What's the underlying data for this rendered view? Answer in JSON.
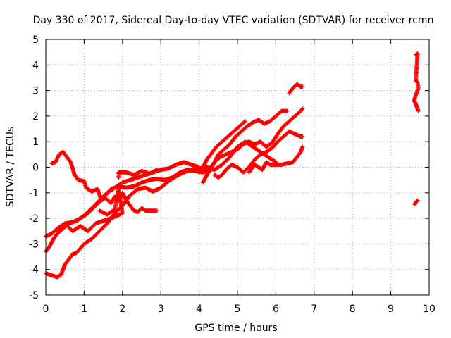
{
  "chart_data": {
    "type": "scatter",
    "title": "Day 330 of 2017, Sidereal Day-to-day VTEC variation (SDTVAR) for receiver rcmn",
    "xlabel": "GPS time / hours",
    "ylabel": "SDTVAR / TECUs",
    "xlim": [
      0,
      10
    ],
    "ylim": [
      -5,
      5
    ],
    "xticks": [
      "0",
      "1",
      "2",
      "3",
      "4",
      "5",
      "6",
      "7",
      "8",
      "9",
      "10"
    ],
    "yticks": [
      "-5",
      "-4",
      "-3",
      "-2",
      "-1",
      "0",
      "1",
      "2",
      "3",
      "4",
      "5"
    ],
    "grid": true,
    "marker": "+",
    "color": "#ff0000",
    "series": [
      {
        "points": [
          [
            0.0,
            -3.3
          ],
          [
            0.1,
            -3.1
          ],
          [
            0.2,
            -2.8
          ],
          [
            0.3,
            -2.6
          ],
          [
            0.45,
            -2.4
          ],
          [
            0.6,
            -2.2
          ],
          [
            0.8,
            -2.1
          ],
          [
            1.0,
            -1.9
          ],
          [
            1.2,
            -1.6
          ],
          [
            1.4,
            -1.3
          ],
          [
            1.6,
            -1.0
          ],
          [
            1.8,
            -0.8
          ],
          [
            2.0,
            -0.6
          ],
          [
            2.2,
            -0.5
          ],
          [
            2.4,
            -0.4
          ],
          [
            2.6,
            -0.3
          ],
          [
            2.8,
            -0.2
          ],
          [
            3.0,
            -0.1
          ],
          [
            3.2,
            -0.05
          ],
          [
            3.4,
            0.1
          ],
          [
            3.6,
            0.2
          ],
          [
            3.8,
            0.1
          ],
          [
            4.0,
            0.0
          ]
        ]
      },
      {
        "points": [
          [
            0.0,
            -2.7
          ],
          [
            0.15,
            -2.6
          ],
          [
            0.3,
            -2.4
          ],
          [
            0.5,
            -2.2
          ],
          [
            0.7,
            -2.15
          ],
          [
            0.9,
            -2.0
          ],
          [
            1.1,
            -1.8
          ],
          [
            1.3,
            -1.5
          ],
          [
            1.5,
            -1.2
          ],
          [
            1.7,
            -0.85
          ],
          [
            1.9,
            -0.75
          ],
          [
            2.1,
            -0.8
          ],
          [
            2.3,
            -0.75
          ],
          [
            2.5,
            -0.6
          ],
          [
            2.7,
            -0.5
          ],
          [
            2.9,
            -0.45
          ],
          [
            3.1,
            -0.5
          ],
          [
            3.3,
            -0.4
          ],
          [
            3.5,
            -0.2
          ],
          [
            3.7,
            -0.1
          ],
          [
            3.9,
            -0.15
          ],
          [
            4.1,
            -0.2
          ],
          [
            4.3,
            -0.1
          ]
        ]
      },
      {
        "points": [
          [
            0.0,
            -4.15
          ],
          [
            0.3,
            -4.3
          ],
          [
            0.4,
            -4.2
          ],
          [
            0.5,
            -3.8
          ],
          [
            0.6,
            -3.6
          ],
          [
            0.7,
            -3.4
          ],
          [
            0.8,
            -3.35
          ],
          [
            1.0,
            -3.0
          ],
          [
            1.2,
            -2.8
          ],
          [
            1.4,
            -2.5
          ],
          [
            1.6,
            -2.2
          ],
          [
            1.8,
            -1.8
          ],
          [
            2.0,
            -1.5
          ],
          [
            2.2,
            -1.1
          ],
          [
            2.4,
            -0.85
          ],
          [
            2.6,
            -0.8
          ],
          [
            2.8,
            -0.95
          ],
          [
            3.0,
            -0.8
          ],
          [
            3.2,
            -0.55
          ],
          [
            3.4,
            -0.35
          ],
          [
            3.6,
            -0.2
          ],
          [
            3.8,
            -0.1
          ],
          [
            4.0,
            -0.05
          ],
          [
            4.2,
            0.0
          ],
          [
            4.4,
            -0.1
          ],
          [
            4.6,
            0.1
          ],
          [
            4.8,
            0.4
          ],
          [
            5.0,
            0.8
          ],
          [
            5.2,
            1.0
          ],
          [
            5.4,
            0.8
          ],
          [
            5.6,
            0.6
          ],
          [
            5.8,
            0.4
          ],
          [
            6.0,
            0.2
          ]
        ]
      },
      {
        "points": [
          [
            0.15,
            0.15
          ],
          [
            0.25,
            0.2
          ],
          [
            0.35,
            0.5
          ],
          [
            0.45,
            0.6
          ],
          [
            0.55,
            0.4
          ],
          [
            0.65,
            0.2
          ],
          [
            0.75,
            -0.3
          ],
          [
            0.85,
            -0.5
          ],
          [
            1.0,
            -0.55
          ],
          [
            1.05,
            -0.8
          ],
          [
            1.2,
            -0.95
          ],
          [
            1.35,
            -0.85
          ],
          [
            1.45,
            -1.3
          ],
          [
            1.55,
            -1.2
          ],
          [
            1.7,
            -1.4
          ],
          [
            1.8,
            -1.15
          ],
          [
            1.9,
            -1.3
          ],
          [
            2.0,
            -1.0
          ],
          [
            2.1,
            -1.3
          ],
          [
            2.2,
            -1.5
          ],
          [
            2.3,
            -1.7
          ],
          [
            2.4,
            -1.75
          ],
          [
            2.5,
            -1.6
          ],
          [
            2.6,
            -1.7
          ],
          [
            2.75,
            -1.7
          ],
          [
            2.9,
            -1.7
          ]
        ]
      },
      {
        "points": [
          [
            1.4,
            -1.7
          ],
          [
            1.6,
            -1.85
          ],
          [
            1.8,
            -1.65
          ],
          [
            1.9,
            -0.85
          ],
          [
            2.0,
            -1.8
          ],
          [
            1.7,
            -2.0
          ],
          [
            1.5,
            -2.1
          ],
          [
            1.3,
            -2.2
          ],
          [
            1.1,
            -2.5
          ],
          [
            0.9,
            -2.3
          ],
          [
            0.7,
            -2.5
          ],
          [
            0.5,
            -2.2
          ],
          [
            0.3,
            -2.5
          ],
          [
            1.9,
            -0.4
          ],
          [
            1.9,
            -0.2
          ],
          [
            2.1,
            -0.2
          ],
          [
            2.3,
            -0.3
          ],
          [
            2.5,
            -0.15
          ],
          [
            2.7,
            -0.25
          ],
          [
            2.9,
            -0.1
          ]
        ]
      },
      {
        "points": [
          [
            4.1,
            -0.6
          ],
          [
            4.2,
            -0.3
          ],
          [
            4.3,
            -0.1
          ],
          [
            4.4,
            0.2
          ],
          [
            4.55,
            0.4
          ],
          [
            4.7,
            0.5
          ],
          [
            4.85,
            0.6
          ],
          [
            5.0,
            0.7
          ],
          [
            5.15,
            0.9
          ],
          [
            5.3,
            1.0
          ],
          [
            5.45,
            0.9
          ],
          [
            5.6,
            1.0
          ],
          [
            5.75,
            0.8
          ],
          [
            5.9,
            0.95
          ],
          [
            6.05,
            1.3
          ],
          [
            6.2,
            1.6
          ],
          [
            6.35,
            1.8
          ],
          [
            6.5,
            2.0
          ],
          [
            6.65,
            2.2
          ],
          [
            6.7,
            2.3
          ]
        ]
      },
      {
        "points": [
          [
            4.2,
            -0.3
          ],
          [
            4.3,
            0.0
          ],
          [
            4.4,
            0.2
          ],
          [
            4.5,
            0.5
          ],
          [
            4.65,
            0.7
          ],
          [
            4.8,
            0.9
          ],
          [
            4.95,
            1.2
          ],
          [
            5.1,
            1.4
          ],
          [
            5.25,
            1.6
          ],
          [
            5.4,
            1.75
          ],
          [
            5.55,
            1.85
          ],
          [
            5.7,
            1.7
          ],
          [
            5.85,
            1.8
          ],
          [
            6.0,
            2.0
          ],
          [
            6.15,
            2.2
          ],
          [
            6.3,
            2.2
          ]
        ]
      },
      {
        "points": [
          [
            4.0,
            -0.2
          ],
          [
            4.1,
            0.0
          ],
          [
            4.2,
            0.3
          ],
          [
            4.3,
            0.5
          ],
          [
            4.45,
            0.8
          ],
          [
            4.6,
            1.0
          ],
          [
            4.75,
            1.2
          ],
          [
            4.9,
            1.4
          ],
          [
            5.05,
            1.6
          ],
          [
            5.2,
            1.8
          ]
        ]
      },
      {
        "points": [
          [
            4.4,
            -0.3
          ],
          [
            4.5,
            -0.4
          ],
          [
            4.6,
            -0.3
          ],
          [
            4.7,
            -0.1
          ],
          [
            4.85,
            0.1
          ],
          [
            5.0,
            0.0
          ],
          [
            5.15,
            -0.2
          ],
          [
            5.3,
            0.0
          ],
          [
            5.45,
            0.3
          ],
          [
            5.6,
            0.5
          ],
          [
            5.75,
            0.6
          ],
          [
            5.9,
            0.75
          ],
          [
            6.05,
            1.0
          ],
          [
            6.2,
            1.2
          ],
          [
            6.35,
            1.4
          ],
          [
            6.5,
            1.3
          ],
          [
            6.65,
            1.2
          ],
          [
            6.7,
            1.2
          ]
        ]
      },
      {
        "points": [
          [
            5.3,
            -0.2
          ],
          [
            5.45,
            0.1
          ],
          [
            5.55,
            0.0
          ],
          [
            5.65,
            -0.1
          ],
          [
            5.75,
            0.2
          ],
          [
            5.85,
            0.1
          ],
          [
            6.0,
            0.1
          ],
          [
            6.15,
            0.1
          ],
          [
            6.3,
            0.15
          ],
          [
            6.45,
            0.2
          ],
          [
            6.55,
            0.4
          ],
          [
            6.65,
            0.6
          ],
          [
            6.7,
            0.8
          ]
        ]
      },
      {
        "points": [
          [
            6.35,
            2.9
          ],
          [
            6.45,
            3.1
          ],
          [
            6.55,
            3.25
          ],
          [
            6.65,
            3.15
          ],
          [
            6.7,
            3.15
          ]
        ]
      },
      {
        "points": [
          [
            9.65,
            4.4
          ],
          [
            9.7,
            4.45
          ],
          [
            9.65,
            3.4
          ],
          [
            9.7,
            3.3
          ],
          [
            9.72,
            3.1
          ],
          [
            9.6,
            2.6
          ],
          [
            9.65,
            2.5
          ],
          [
            9.68,
            2.35
          ],
          [
            9.72,
            2.2
          ],
          [
            9.62,
            -1.45
          ],
          [
            9.66,
            -1.35
          ],
          [
            9.7,
            -1.3
          ]
        ]
      }
    ]
  }
}
